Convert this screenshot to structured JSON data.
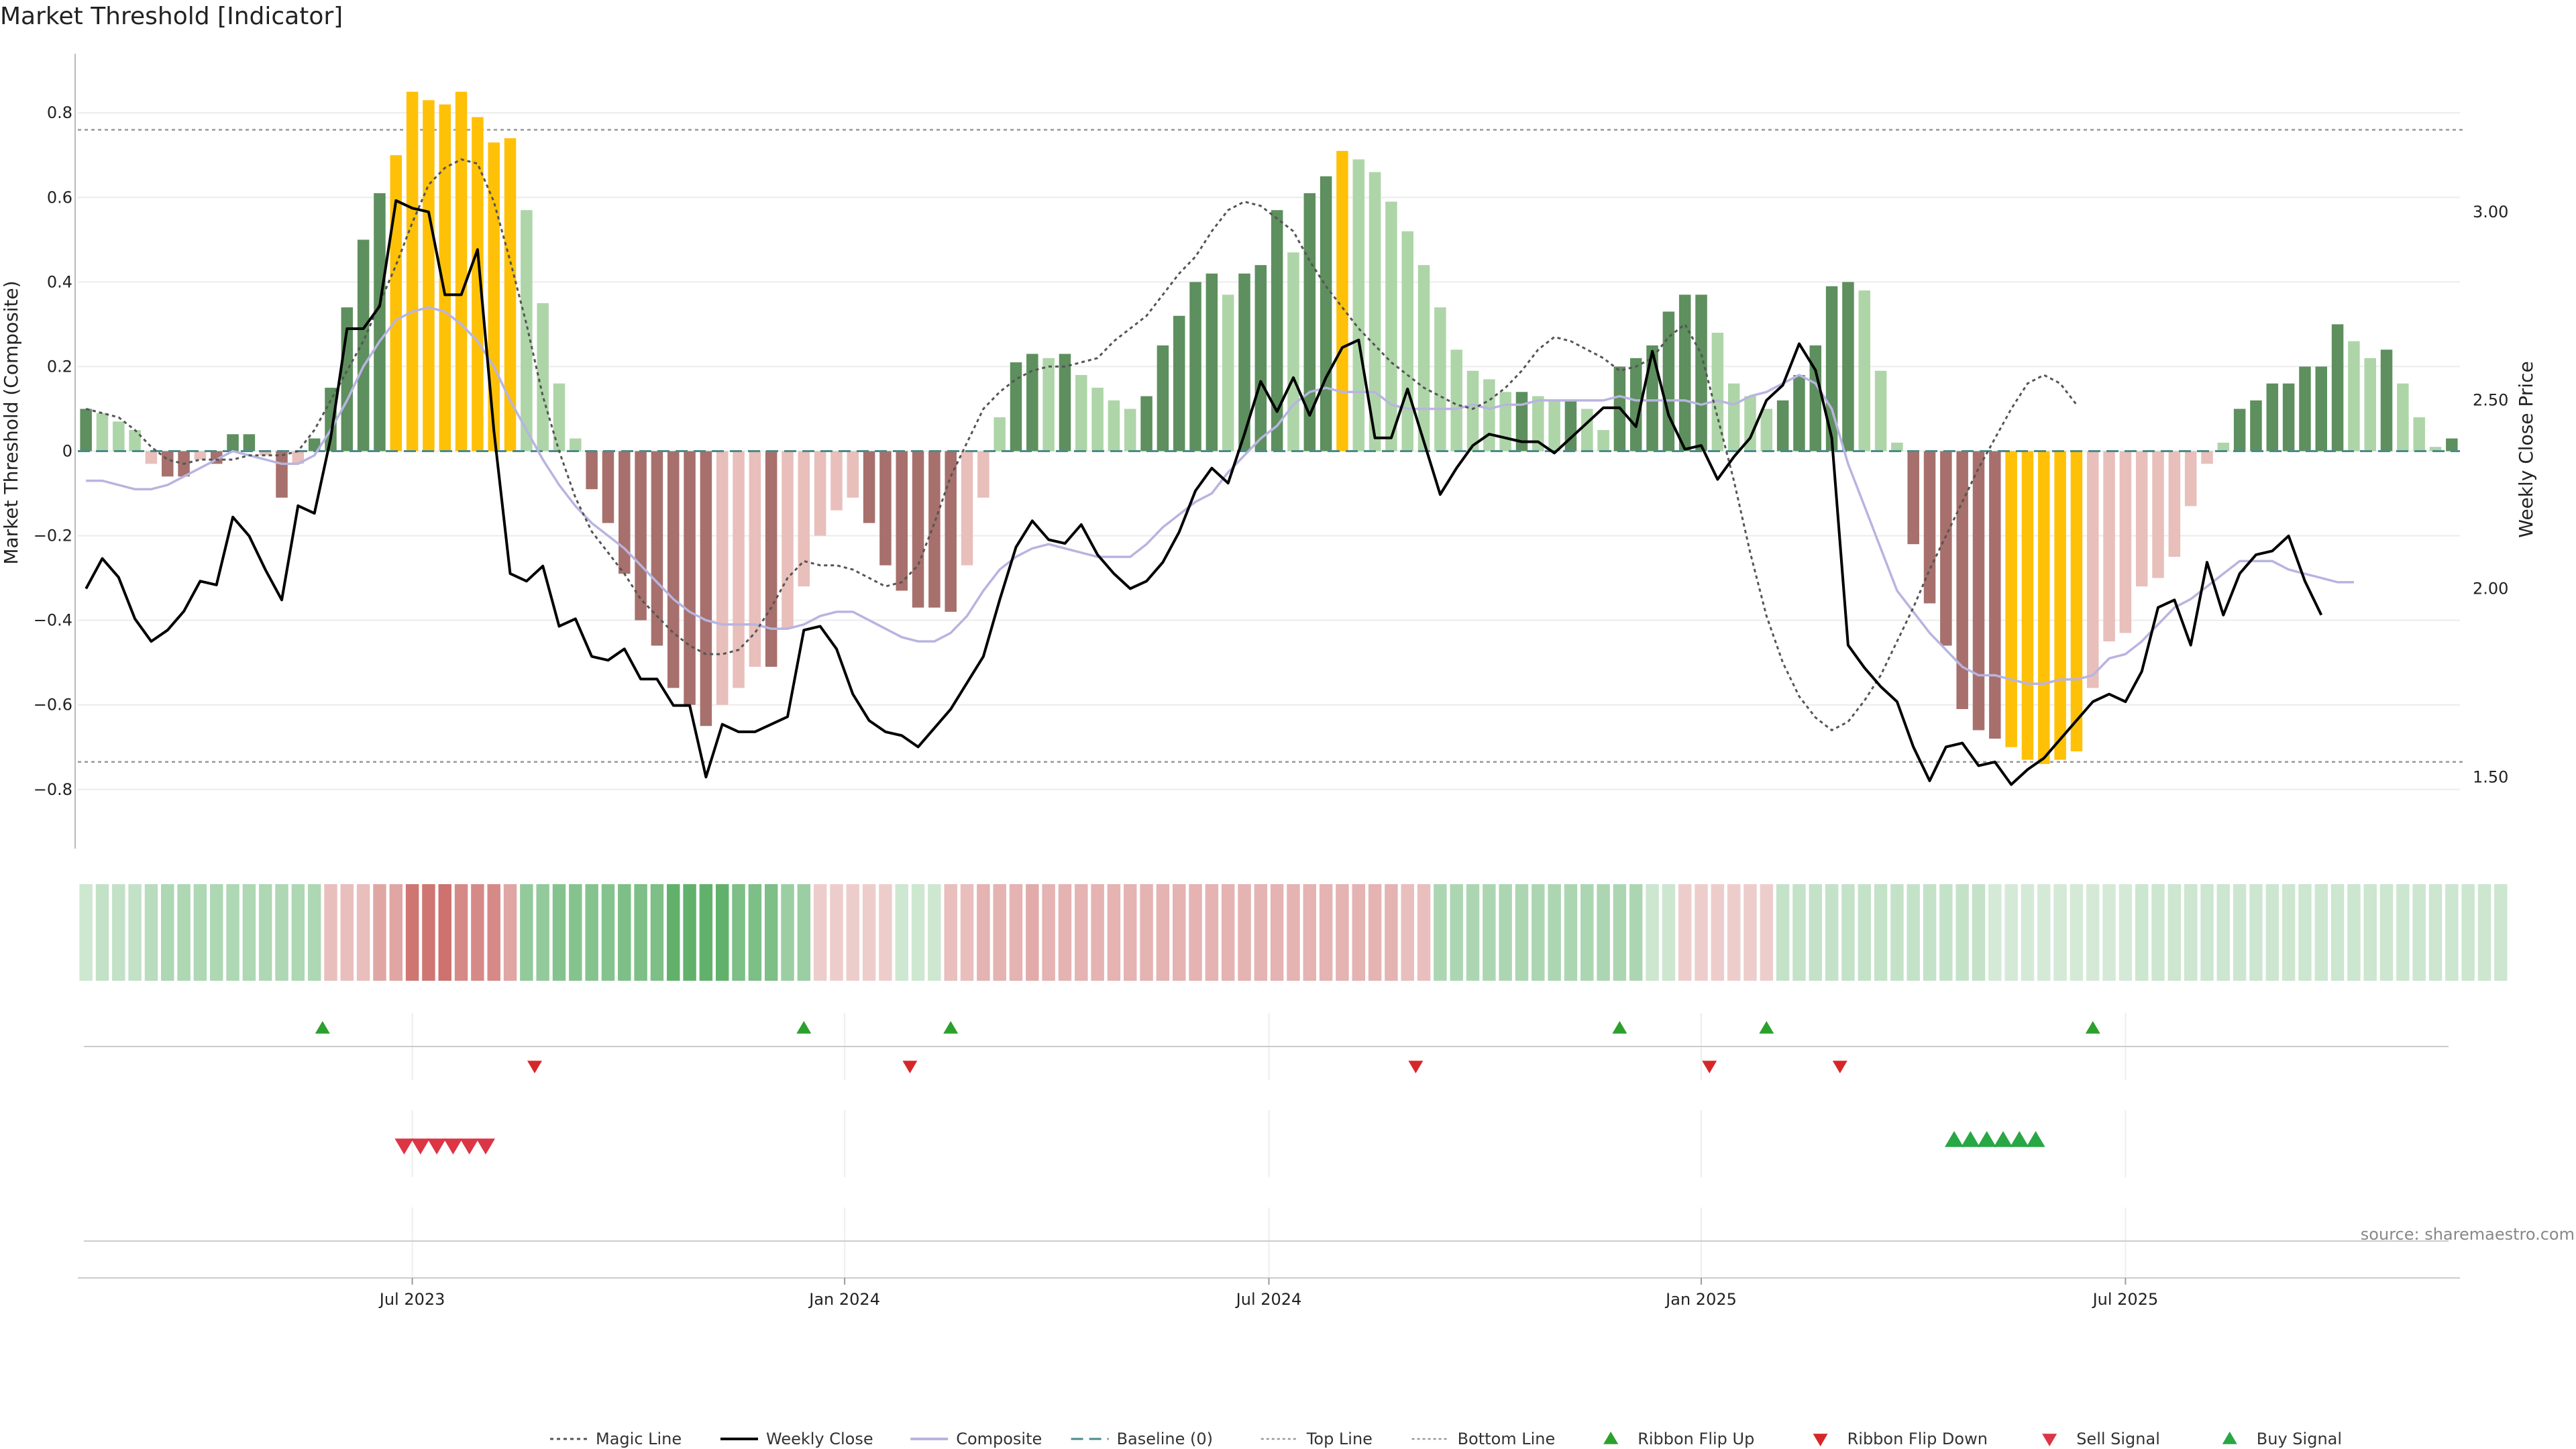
{
  "title": "Market Threshold [Indicator]",
  "source_note": "source: sharemaestro.com",
  "chart_data": {
    "type": "bar",
    "title": "Market Threshold [Indicator]",
    "ylabel": "Market Threshold (Composite)",
    "y2label": "Weekly Close Price",
    "ylim": [
      -0.94,
      0.94
    ],
    "y2lim": [
      1.31,
      3.42
    ],
    "yticks": [
      -0.8,
      -0.6,
      -0.4,
      -0.2,
      0,
      0.2,
      0.4,
      0.6,
      0.8
    ],
    "yticklabels": [
      "−0.8",
      "−0.6",
      "−0.4",
      "−0.2",
      "0",
      "0.2",
      "0.4",
      "0.6",
      "0.8"
    ],
    "y2ticks": [
      1.5,
      2.0,
      2.5,
      3.0
    ],
    "y2ticklabels": [
      "1.50",
      "2.00",
      "2.50",
      "3.00"
    ],
    "xticks": [
      "Jul 2023",
      "Jan 2024",
      "Jul 2024",
      "Jan 2025",
      "Jul 2025"
    ],
    "xtick_weeks": [
      20.5,
      47,
      73,
      99.5,
      125.5
    ],
    "top_line": 0.76,
    "bottom_line": -0.735,
    "grid": true,
    "legend_placement": "bottom-center",
    "colors": {
      "green_dark": "#5e8f5e",
      "green_light": "#aed5a8",
      "red_dark": "#a7706c",
      "red_light": "#e8bfbb",
      "extreme": "#ffc107",
      "weekly_close": "#000000",
      "composite": "#b8b4e0",
      "magic_line": "#555555",
      "baseline": "#4a8a8a",
      "threshold_line": "#999999",
      "signal_up": "#2ca02c",
      "signal_down": "#d62728",
      "sell_signal": "#dc3545",
      "buy_signal": "#28a745"
    },
    "bars": [
      0.1,
      0.09,
      0.07,
      0.05,
      -0.03,
      -0.06,
      -0.06,
      -0.02,
      -0.03,
      0.04,
      0.04,
      -0.01,
      -0.11,
      -0.03,
      0.03,
      0.15,
      0.34,
      0.5,
      0.61,
      0.7,
      0.85,
      0.83,
      0.82,
      0.85,
      0.79,
      0.73,
      0.74,
      0.57,
      0.35,
      0.16,
      0.03,
      -0.09,
      -0.17,
      -0.29,
      -0.4,
      -0.46,
      -0.56,
      -0.6,
      -0.65,
      -0.6,
      -0.56,
      -0.51,
      -0.51,
      -0.42,
      -0.32,
      -0.2,
      -0.14,
      -0.11,
      -0.17,
      -0.27,
      -0.33,
      -0.37,
      -0.37,
      -0.38,
      -0.27,
      -0.11,
      0.08,
      0.21,
      0.23,
      0.22,
      0.23,
      0.18,
      0.15,
      0.12,
      0.1,
      0.13,
      0.25,
      0.32,
      0.4,
      0.42,
      0.37,
      0.42,
      0.44,
      0.57,
      0.47,
      0.61,
      0.65,
      0.71,
      0.69,
      0.66,
      0.59,
      0.52,
      0.44,
      0.34,
      0.24,
      0.19,
      0.17,
      0.14,
      0.14,
      0.13,
      0.12,
      0.12,
      0.1,
      0.05,
      0.2,
      0.22,
      0.25,
      0.33,
      0.37,
      0.37,
      0.28,
      0.16,
      0.13,
      0.1,
      0.12,
      0.18,
      0.25,
      0.39,
      0.4,
      0.38,
      0.19,
      0.02,
      -0.22,
      -0.36,
      -0.46,
      -0.61,
      -0.66,
      -0.68,
      -0.7,
      -0.73,
      -0.74,
      -0.73,
      -0.71,
      -0.56,
      -0.45,
      -0.43,
      -0.32,
      -0.3,
      -0.25,
      -0.13,
      -0.03,
      0.02,
      0.1,
      0.12,
      0.16,
      0.16,
      0.2,
      0.2,
      0.3,
      0.26,
      0.22,
      0.24,
      0.16,
      0.08,
      0.01,
      0.03
    ],
    "weekly_close": [
      2.0,
      2.08,
      2.03,
      1.92,
      1.86,
      1.89,
      1.94,
      2.02,
      2.01,
      2.19,
      2.14,
      2.05,
      1.97,
      2.22,
      2.2,
      2.4,
      2.69,
      2.69,
      2.75,
      3.03,
      3.01,
      3.0,
      2.78,
      2.78,
      2.9,
      2.42,
      2.04,
      2.02,
      2.06,
      1.9,
      1.92,
      1.82,
      1.81,
      1.84,
      1.76,
      1.76,
      1.69,
      1.69,
      1.5,
      1.64,
      1.62,
      1.62,
      1.64,
      1.66,
      1.89,
      1.9,
      1.84,
      1.72,
      1.65,
      1.62,
      1.61,
      1.58,
      1.63,
      1.68,
      1.75,
      1.82,
      1.97,
      2.11,
      2.18,
      2.13,
      2.12,
      2.17,
      2.09,
      2.04,
      2.0,
      2.02,
      2.07,
      2.15,
      2.26,
      2.32,
      2.28,
      2.41,
      2.55,
      2.47,
      2.56,
      2.46,
      2.56,
      2.64,
      2.66,
      2.4,
      2.4,
      2.53,
      2.39,
      2.25,
      2.32,
      2.38,
      2.41,
      2.4,
      2.39,
      2.39,
      2.36,
      2.4,
      2.44,
      2.48,
      2.48,
      2.43,
      2.63,
      2.46,
      2.37,
      2.38,
      2.29,
      2.35,
      2.4,
      2.5,
      2.54,
      2.65,
      2.58,
      2.4,
      1.85,
      1.79,
      1.74,
      1.7,
      1.58,
      1.49,
      1.58,
      1.59,
      1.53,
      1.54,
      1.48,
      1.52,
      1.55,
      1.6,
      1.65,
      1.7,
      1.72,
      1.7,
      1.78,
      1.95,
      1.97,
      1.85,
      2.07,
      1.93,
      2.04,
      2.09,
      2.1,
      2.14,
      2.02,
      1.93
    ],
    "composite": [
      -0.07,
      -0.07,
      -0.08,
      -0.09,
      -0.09,
      -0.08,
      -0.06,
      -0.04,
      -0.02,
      0.0,
      -0.01,
      -0.02,
      -0.03,
      -0.03,
      -0.01,
      0.05,
      0.12,
      0.2,
      0.26,
      0.31,
      0.33,
      0.34,
      0.33,
      0.3,
      0.26,
      0.2,
      0.12,
      0.05,
      -0.02,
      -0.08,
      -0.13,
      -0.17,
      -0.2,
      -0.23,
      -0.27,
      -0.31,
      -0.35,
      -0.38,
      -0.4,
      -0.41,
      -0.41,
      -0.41,
      -0.42,
      -0.42,
      -0.41,
      -0.39,
      -0.38,
      -0.38,
      -0.4,
      -0.42,
      -0.44,
      -0.45,
      -0.45,
      -0.43,
      -0.39,
      -0.33,
      -0.28,
      -0.25,
      -0.23,
      -0.22,
      -0.23,
      -0.24,
      -0.25,
      -0.25,
      -0.25,
      -0.22,
      -0.18,
      -0.15,
      -0.12,
      -0.1,
      -0.05,
      -0.01,
      0.03,
      0.06,
      0.11,
      0.14,
      0.15,
      0.14,
      0.14,
      0.14,
      0.11,
      0.1,
      0.1,
      0.1,
      0.1,
      0.11,
      0.1,
      0.11,
      0.11,
      0.12,
      0.12,
      0.12,
      0.12,
      0.12,
      0.13,
      0.12,
      0.12,
      0.12,
      0.12,
      0.11,
      0.12,
      0.11,
      0.13,
      0.14,
      0.16,
      0.18,
      0.16,
      0.1,
      -0.03,
      -0.13,
      -0.23,
      -0.33,
      -0.38,
      -0.43,
      -0.47,
      -0.51,
      -0.53,
      -0.53,
      -0.54,
      -0.55,
      -0.55,
      -0.54,
      -0.54,
      -0.53,
      -0.49,
      -0.48,
      -0.45,
      -0.41,
      -0.37,
      -0.35,
      -0.32,
      -0.29,
      -0.26,
      -0.26,
      -0.26,
      -0.28,
      -0.29,
      -0.3,
      -0.31,
      -0.31
    ],
    "magic_line": [
      0.1,
      0.09,
      0.08,
      0.05,
      0.01,
      -0.02,
      -0.03,
      -0.02,
      -0.02,
      -0.02,
      -0.01,
      -0.01,
      -0.01,
      0.0,
      0.05,
      0.12,
      0.19,
      0.26,
      0.35,
      0.44,
      0.54,
      0.63,
      0.67,
      0.69,
      0.68,
      0.59,
      0.45,
      0.3,
      0.13,
      0.0,
      -0.11,
      -0.19,
      -0.24,
      -0.29,
      -0.35,
      -0.39,
      -0.43,
      -0.46,
      -0.48,
      -0.48,
      -0.47,
      -0.43,
      -0.37,
      -0.3,
      -0.26,
      -0.27,
      -0.27,
      -0.28,
      -0.3,
      -0.32,
      -0.31,
      -0.27,
      -0.17,
      -0.06,
      0.02,
      0.1,
      0.14,
      0.17,
      0.19,
      0.2,
      0.2,
      0.21,
      0.22,
      0.26,
      0.29,
      0.32,
      0.37,
      0.42,
      0.46,
      0.52,
      0.57,
      0.59,
      0.58,
      0.55,
      0.52,
      0.45,
      0.39,
      0.34,
      0.29,
      0.25,
      0.21,
      0.18,
      0.15,
      0.13,
      0.11,
      0.1,
      0.12,
      0.15,
      0.19,
      0.24,
      0.27,
      0.26,
      0.24,
      0.22,
      0.19,
      0.2,
      0.22,
      0.27,
      0.3,
      0.23,
      0.08,
      -0.07,
      -0.24,
      -0.39,
      -0.5,
      -0.58,
      -0.63,
      -0.66,
      -0.64,
      -0.59,
      -0.53,
      -0.45,
      -0.37,
      -0.28,
      -0.2,
      -0.12,
      -0.04,
      0.03,
      0.1,
      0.16,
      0.18,
      0.16,
      0.11
    ],
    "ribbon": [
      0.25,
      0.31,
      0.31,
      0.31,
      0.36,
      0.41,
      0.41,
      0.41,
      0.41,
      0.41,
      0.41,
      0.41,
      0.41,
      0.41,
      0.41,
      -0.33,
      -0.33,
      -0.33,
      -0.46,
      -0.46,
      -0.7,
      -0.7,
      -0.72,
      -0.6,
      -0.6,
      -0.6,
      -0.46,
      0.55,
      0.55,
      0.62,
      0.62,
      0.62,
      0.62,
      0.66,
      0.66,
      0.66,
      0.8,
      0.8,
      0.8,
      0.8,
      0.66,
      0.66,
      0.66,
      0.5,
      0.5,
      -0.26,
      -0.26,
      -0.26,
      -0.26,
      -0.26,
      0.25,
      0.25,
      0.25,
      -0.33,
      -0.33,
      -0.39,
      -0.39,
      -0.39,
      -0.43,
      -0.39,
      -0.39,
      -0.39,
      -0.39,
      -0.39,
      -0.39,
      -0.39,
      -0.39,
      -0.39,
      -0.39,
      -0.39,
      -0.39,
      -0.39,
      -0.39,
      -0.39,
      -0.39,
      -0.39,
      -0.39,
      -0.39,
      -0.39,
      -0.39,
      -0.39,
      -0.33,
      -0.33,
      0.42,
      0.42,
      0.42,
      0.42,
      0.42,
      0.42,
      0.42,
      0.42,
      0.42,
      0.42,
      0.42,
      0.42,
      0.42,
      0.26,
      0.26,
      -0.26,
      -0.26,
      -0.26,
      -0.26,
      -0.26,
      -0.26,
      0.3,
      0.3,
      0.3,
      0.3,
      0.3,
      0.3,
      0.3,
      0.3,
      0.3,
      0.3,
      0.3,
      0.3,
      0.3,
      0.22,
      0.22,
      0.22,
      0.22,
      0.22,
      0.22,
      0.22,
      0.22,
      0.22,
      0.26,
      0.26,
      0.26,
      0.26,
      0.26,
      0.26,
      0.26,
      0.26,
      0.26,
      0.26,
      0.26,
      0.26,
      0.26,
      0.26,
      0.26,
      0.26,
      0.26,
      0.26,
      0.26,
      0.26,
      0.26,
      0.26,
      0.26
    ],
    "ribbon_flip_up_weeks": [
      15,
      44.5,
      53.5,
      94.5,
      103.5,
      123.5
    ],
    "ribbon_flip_down_weeks": [
      28,
      51,
      82,
      100,
      108
    ],
    "sell_signal_weeks": [
      20,
      21,
      22,
      23,
      24,
      25
    ],
    "buy_signal_weeks": [
      115,
      116,
      117,
      118,
      119,
      120
    ],
    "legend": [
      {
        "label": "Magic Line",
        "kind": "dotted"
      },
      {
        "label": "Weekly Close",
        "kind": "solid"
      },
      {
        "label": "Composite",
        "kind": "composite"
      },
      {
        "label": "Baseline (0)",
        "kind": "dashed"
      },
      {
        "label": "Top Line",
        "kind": "thin-dotted"
      },
      {
        "label": "Bottom Line",
        "kind": "thin-dotted"
      },
      {
        "label": "Ribbon Flip Up",
        "kind": "up-green"
      },
      {
        "label": "Ribbon Flip Down",
        "kind": "down-red"
      },
      {
        "label": "Sell Signal",
        "kind": "down-sell"
      },
      {
        "label": "Buy Signal",
        "kind": "up-buy"
      }
    ]
  }
}
